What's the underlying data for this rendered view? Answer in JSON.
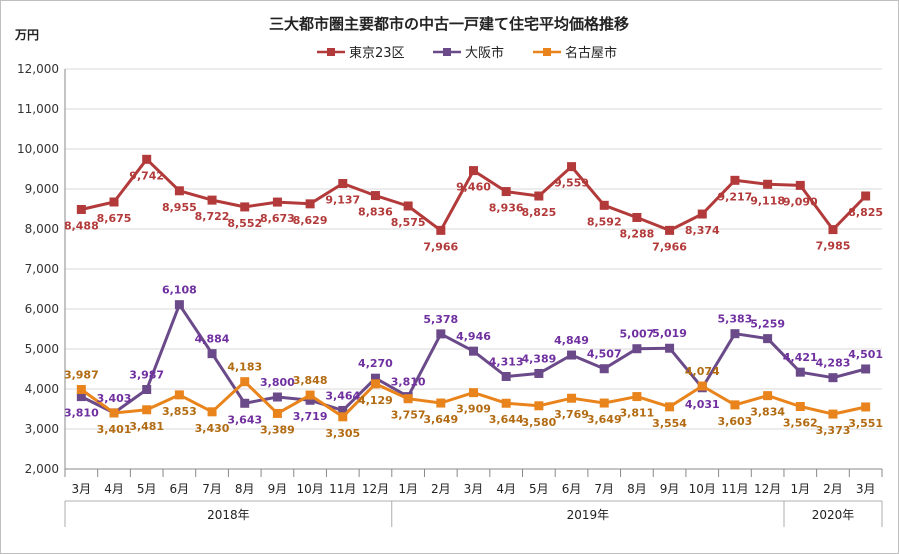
{
  "chart_data": {
    "type": "line",
    "title": "三大都市圏主要都市の中古一戸建て住宅平均価格推移",
    "ylabel": "万円",
    "ylim": [
      2000,
      12000
    ],
    "ytick_values": [
      2000,
      3000,
      4000,
      5000,
      6000,
      7000,
      8000,
      9000,
      10000,
      11000,
      12000
    ],
    "ytick_labels": [
      "2,000",
      "3,000",
      "4,000",
      "5,000",
      "6,000",
      "7,000",
      "8,000",
      "9,000",
      "10,000",
      "11,000",
      "12,000"
    ],
    "categories": [
      "3月",
      "4月",
      "5月",
      "6月",
      "7月",
      "8月",
      "9月",
      "10月",
      "11月",
      "12月",
      "1月",
      "2月",
      "3月",
      "4月",
      "5月",
      "6月",
      "7月",
      "8月",
      "9月",
      "10月",
      "11月",
      "12月",
      "1月",
      "2月",
      "3月"
    ],
    "year_groups": [
      {
        "label": "2018年",
        "start": 0,
        "end": 9
      },
      {
        "label": "2019年",
        "start": 10,
        "end": 21
      },
      {
        "label": "2020年",
        "start": 22,
        "end": 24
      }
    ],
    "legend_position": "top-center",
    "series": [
      {
        "name": "東京23区",
        "color": "#b33a3a",
        "marker": "square",
        "values": [
          8488,
          8675,
          9742,
          8955,
          8722,
          8552,
          8673,
          8629,
          9137,
          8836,
          8575,
          7966,
          9460,
          8936,
          8825,
          9559,
          8592,
          8288,
          7966,
          8374,
          9217,
          9118,
          9090,
          7985,
          8825
        ],
        "labels": [
          "8,488",
          "8,675",
          "9,742",
          "8,955",
          "8,722",
          "8,552",
          "8,673",
          "8,629",
          "9,137",
          "8,836",
          "8,575",
          "7,966",
          "9,460",
          "8,936",
          "8,825",
          "9,559",
          "8,592",
          "8,288",
          "7,966",
          "8,374",
          "9,217",
          "9,118",
          "9,090",
          "7,985",
          "8,825"
        ]
      },
      {
        "name": "大阪市",
        "color": "#6b4a8a",
        "label_color": "#7030a0",
        "marker": "square",
        "values": [
          3810,
          3403,
          3987,
          6108,
          4884,
          3643,
          3800,
          3719,
          3464,
          4270,
          3810,
          5378,
          4946,
          4313,
          4389,
          4849,
          4507,
          5007,
          5019,
          4031,
          5383,
          5259,
          4421,
          4283,
          4501
        ],
        "labels": [
          "3,810",
          "3,403",
          "3,987",
          "6,108",
          "4,884",
          "3,643",
          "3,800",
          "3,719",
          "3,464",
          "4,270",
          "3,810",
          "5,378",
          "4,946",
          "4,313",
          "4,389",
          "4,849",
          "4,507",
          "5,007",
          "5,019",
          "4,031",
          "5,383",
          "5,259",
          "4,421",
          "4,283",
          "4,501"
        ]
      },
      {
        "name": "名古屋市",
        "color": "#e8841b",
        "label_color": "#b26b12",
        "marker": "square",
        "values": [
          3987,
          3401,
          3481,
          3853,
          3430,
          4183,
          3389,
          3848,
          3305,
          4129,
          3757,
          3649,
          3909,
          3644,
          3580,
          3769,
          3649,
          3811,
          3554,
          4074,
          3603,
          3834,
          3562,
          3373,
          3551
        ],
        "labels": [
          "3,987",
          "3,401",
          "3,481",
          "3,853",
          "3,430",
          "4,183",
          "3,389",
          "3,848",
          "3,305",
          "4,129",
          "3,757",
          "3,649",
          "3,909",
          "3,644",
          "3,580",
          "3,769",
          "3,649",
          "3,811",
          "3,554",
          "4,074",
          "3,603",
          "3,834",
          "3,562",
          "3,373",
          "3,551"
        ]
      }
    ]
  }
}
